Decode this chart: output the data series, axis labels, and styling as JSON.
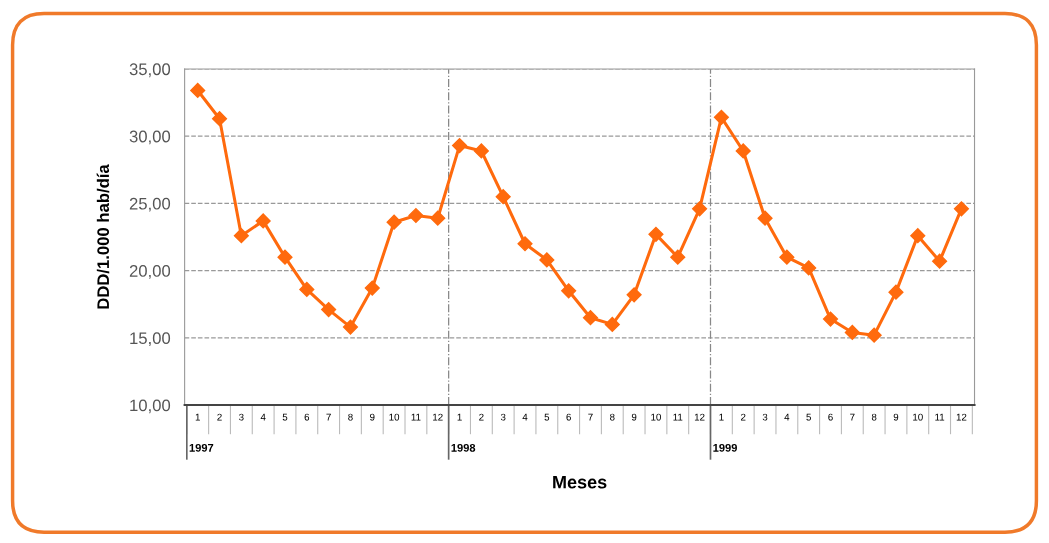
{
  "chart_data": {
    "type": "line",
    "ylabel": "DDD/1.000 hab/día",
    "xlabel": "Meses",
    "categories": [
      "1",
      "2",
      "3",
      "4",
      "5",
      "6",
      "7",
      "8",
      "9",
      "10",
      "11",
      "12",
      "1",
      "2",
      "3",
      "4",
      "5",
      "6",
      "7",
      "8",
      "9",
      "10",
      "11",
      "12",
      "1",
      "2",
      "3",
      "4",
      "5",
      "6",
      "7",
      "8",
      "9",
      "10",
      "11",
      "12"
    ],
    "series": [
      {
        "color": "#ff6a0d",
        "values": [
          33.4,
          31.3,
          22.6,
          23.7,
          21.0,
          18.6,
          17.1,
          15.8,
          18.7,
          23.6,
          24.1,
          23.9,
          29.3,
          28.9,
          25.5,
          22.0,
          20.8,
          18.5,
          16.5,
          16.0,
          18.2,
          22.7,
          21.0,
          24.6,
          31.4,
          28.9,
          23.9,
          21.0,
          20.2,
          16.4,
          15.4,
          15.2,
          18.4,
          22.6,
          20.7,
          24.6
        ]
      }
    ],
    "annotations": [
      "1997",
      "1998",
      "1999"
    ],
    "ylim": [
      10,
      35
    ],
    "yticks": [
      {
        "value": 10,
        "label": "10,00"
      },
      {
        "value": 15,
        "label": "15,00"
      },
      {
        "value": 20,
        "label": "20,00"
      },
      {
        "value": 25,
        "label": "25,00"
      },
      {
        "value": 30,
        "label": "30,00"
      },
      {
        "value": 35,
        "label": "35,00"
      }
    ],
    "grid": "y",
    "marker": "diamond",
    "line_style": "solid",
    "legend": false
  }
}
